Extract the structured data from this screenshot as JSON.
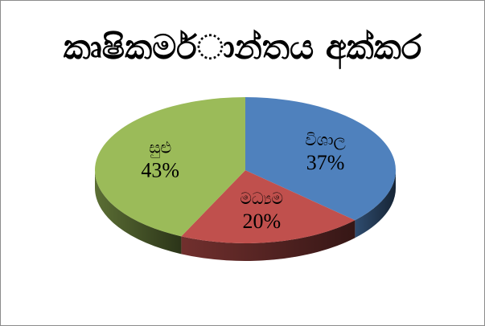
{
  "chart_data": {
    "type": "pie",
    "title": "කෘෂිකමර්ාන්තය අක්කර",
    "categories": [
      "විශාල",
      "මධ්‍යම",
      "සුළු"
    ],
    "values": [
      37,
      20,
      43
    ],
    "value_labels": [
      "37%",
      "20%",
      "43%"
    ],
    "colors": [
      "#4f81bd",
      "#c0504d",
      "#9bbb59"
    ],
    "legend": "none",
    "style": "3d"
  }
}
